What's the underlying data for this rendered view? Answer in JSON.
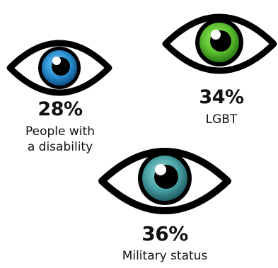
{
  "stats": [
    {
      "value": "28%",
      "caption_line1": "People with",
      "caption_line2": "a disability",
      "iris_color": "#2a8fd0",
      "iris_dark": "#0e4f86"
    },
    {
      "value": "34%",
      "caption_line1": "LGBT",
      "iris_color": "#5cc030",
      "iris_dark": "#2a7a12"
    },
    {
      "value": "36%",
      "caption_line1": "Military status",
      "iris_color": "#4aa3a6",
      "iris_dark": "#1f5d63"
    }
  ],
  "icons": {
    "eye": "eye-icon"
  }
}
